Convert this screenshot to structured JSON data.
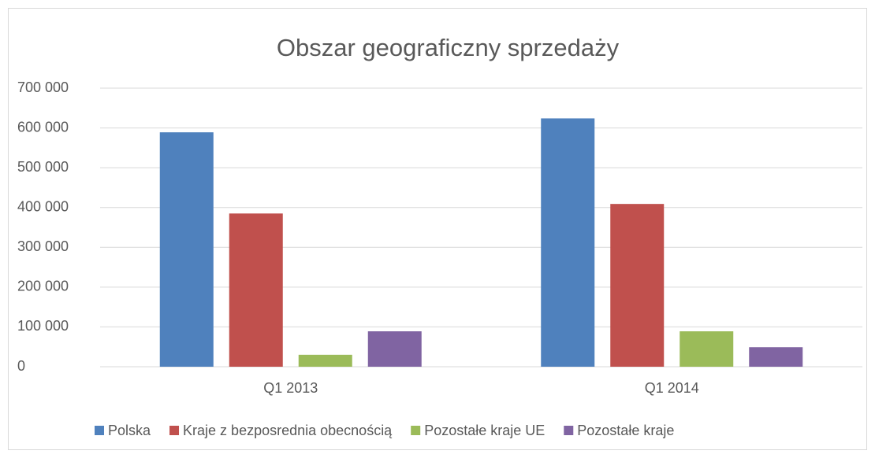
{
  "chart_data": {
    "type": "bar",
    "title": "Obszar geograficzny sprzedaży",
    "categories": [
      "Q1 2013",
      "Q1 2014"
    ],
    "series": [
      {
        "name": "Polska",
        "color": "#4f81bd",
        "values": [
          589000,
          624000
        ]
      },
      {
        "name": "Kraje z bezposrednia obecnością",
        "color": "#c0504d",
        "values": [
          385000,
          409000
        ]
      },
      {
        "name": "Pozostałe kraje UE",
        "color": "#9bbb59",
        "values": [
          30000,
          89000
        ]
      },
      {
        "name": "Pozostałe kraje",
        "color": "#8064a2",
        "values": [
          89000,
          49000
        ]
      }
    ],
    "ylim": [
      0,
      700000
    ],
    "yticks": [
      0,
      {
        "value": 100000,
        "label": "100 000"
      },
      {
        "value": 200000,
        "label": "200 000"
      },
      {
        "value": 300000,
        "label": "300 000"
      },
      {
        "value": 400000,
        "label": "400 000"
      },
      {
        "value": 500000,
        "label": "500 000"
      },
      {
        "value": 600000,
        "label": "600 000"
      },
      {
        "value": 700000,
        "label": "700 000"
      }
    ],
    "grid": true,
    "legend": "bottom"
  }
}
